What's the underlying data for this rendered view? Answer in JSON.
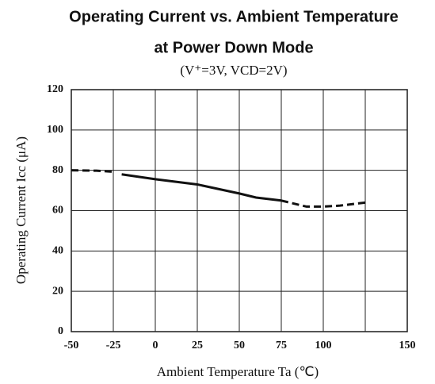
{
  "chart_data": {
    "type": "line",
    "title": "Operating Current vs. Ambient Temperature",
    "subtitle": "at Power Down Mode",
    "conditions": "(V⁺=3V,  VCD=2V)",
    "xlabel": "Ambient Temperature Ta (℃)",
    "ylabel": "Operating Current Icc (μA)",
    "xlim": [
      -50,
      150
    ],
    "ylim": [
      0,
      120
    ],
    "xticks": [
      -50,
      -25,
      0,
      25,
      50,
      75,
      100,
      150
    ],
    "xgrid": [
      -50,
      -25,
      0,
      25,
      50,
      75,
      100,
      125,
      150
    ],
    "yticks": [
      0,
      20,
      40,
      60,
      80,
      100,
      120
    ],
    "grid": true,
    "color": "#111111",
    "series": [
      {
        "style": "dashed",
        "x": [
          -50,
          -35,
          -25
        ],
        "values": [
          80,
          79.8,
          79.3
        ]
      },
      {
        "style": "solid",
        "x": [
          -20,
          0,
          25,
          50,
          60,
          75
        ],
        "values": [
          78,
          75.6,
          73,
          68.5,
          66.5,
          65
        ]
      },
      {
        "style": "dashed",
        "x": [
          75,
          90,
          100,
          110,
          125
        ],
        "values": [
          65,
          62,
          62,
          62.5,
          64
        ]
      }
    ]
  }
}
